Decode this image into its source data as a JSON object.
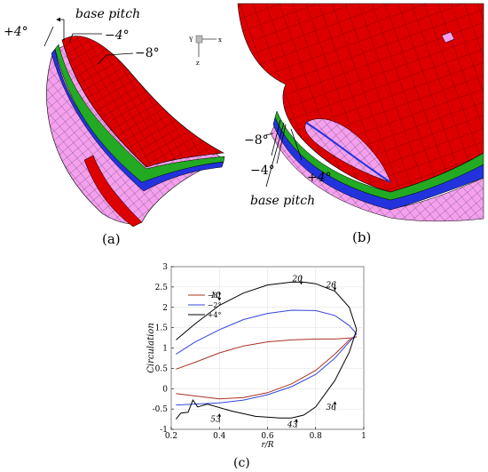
{
  "panels": {
    "a": {
      "caption": "(a)",
      "labels": {
        "base": "base pitch",
        "plus4": "+4°",
        "minus4": "−4°",
        "minus8": "−8°"
      },
      "axes": {
        "x": "x",
        "y": "Y",
        "z": "z"
      }
    },
    "b": {
      "caption": "(b)",
      "labels": {
        "minus8": "−8°",
        "minus4": "−4°",
        "plus4": "+4°",
        "base": "base pitch"
      }
    },
    "c": {
      "caption": "(c)"
    }
  },
  "colors": {
    "red": "#dd0000",
    "pink": "#f4a0ee",
    "blue": "#2233dd",
    "green": "#22aa22",
    "mesh": "#000000"
  },
  "chart_data": {
    "type": "line",
    "xlabel": "r/R",
    "ylabel": "Circulation",
    "xlim": [
      0.2,
      1.0
    ],
    "ylim": [
      -1,
      3
    ],
    "xticks": [
      0.2,
      0.4,
      0.6,
      0.8,
      1
    ],
    "xtick_labels": [
      "0.2",
      "0.4",
      "0.6",
      "0.8",
      "1"
    ],
    "yticks": [
      -1,
      -0.5,
      0,
      0.5,
      1,
      1.5,
      2,
      2.5,
      3
    ],
    "ytick_labels": [
      "-1",
      "-0.5",
      "0",
      "0.5",
      "1",
      "1.5",
      "2",
      "2.5",
      "3"
    ],
    "legend_position": "top-left",
    "series": [
      {
        "name": "−8°",
        "color": "#aa3322",
        "upper": {
          "x": [
            0.22,
            0.3,
            0.4,
            0.5,
            0.6,
            0.7,
            0.8,
            0.88,
            0.95,
            0.97
          ],
          "y": [
            0.48,
            0.65,
            0.88,
            1.05,
            1.15,
            1.2,
            1.22,
            1.22,
            1.25,
            1.28
          ]
        },
        "lower": {
          "x": [
            0.22,
            0.3,
            0.4,
            0.5,
            0.6,
            0.7,
            0.8,
            0.88,
            0.94,
            0.97
          ],
          "y": [
            -0.12,
            -0.18,
            -0.25,
            -0.22,
            -0.1,
            0.12,
            0.45,
            0.85,
            1.2,
            1.28
          ]
        }
      },
      {
        "name": "−2°",
        "color": "#3344dd",
        "upper": {
          "x": [
            0.22,
            0.3,
            0.4,
            0.5,
            0.6,
            0.7,
            0.8,
            0.88,
            0.94,
            0.97
          ],
          "y": [
            0.85,
            1.15,
            1.45,
            1.7,
            1.85,
            1.93,
            1.92,
            1.8,
            1.55,
            1.35
          ]
        },
        "lower": {
          "x": [
            0.22,
            0.3,
            0.4,
            0.5,
            0.6,
            0.7,
            0.8,
            0.88,
            0.94,
            0.97
          ],
          "y": [
            -0.4,
            -0.38,
            -0.35,
            -0.28,
            -0.15,
            0.05,
            0.35,
            0.75,
            1.15,
            1.35
          ]
        }
      },
      {
        "name": "+4°",
        "color": "#000000",
        "upper": {
          "x": [
            0.22,
            0.3,
            0.4,
            0.5,
            0.6,
            0.7,
            0.75,
            0.8,
            0.88,
            0.94,
            0.97
          ],
          "y": [
            1.2,
            1.6,
            2.05,
            2.35,
            2.55,
            2.62,
            2.62,
            2.58,
            2.4,
            2.0,
            1.45
          ]
        },
        "lower": {
          "x": [
            0.22,
            0.24,
            0.27,
            0.29,
            0.31,
            0.35,
            0.45,
            0.55,
            0.65,
            0.7,
            0.75,
            0.8,
            0.88,
            0.94,
            0.97
          ],
          "y": [
            -0.75,
            -0.6,
            -0.58,
            -0.28,
            -0.45,
            -0.38,
            -0.55,
            -0.68,
            -0.72,
            -0.72,
            -0.65,
            -0.45,
            0.2,
            0.9,
            1.45
          ]
        }
      }
    ],
    "annotations": [
      {
        "text": "20",
        "x": 0.74,
        "y": 2.7
      },
      {
        "text": "26",
        "x": 0.88,
        "y": 2.55
      },
      {
        "text": "10",
        "x": 0.4,
        "y": 2.3
      },
      {
        "text": "36",
        "x": 0.88,
        "y": -0.45
      },
      {
        "text": "53",
        "x": 0.4,
        "y": -0.75
      },
      {
        "text": "43",
        "x": 0.72,
        "y": -0.88
      }
    ]
  }
}
